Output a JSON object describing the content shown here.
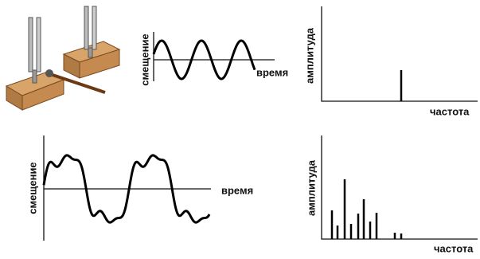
{
  "top_waveform": {
    "y_label": "смещение",
    "x_label": "время"
  },
  "top_spectrum": {
    "y_label": "амплитуда",
    "x_label": "частота"
  },
  "bottom_waveform": {
    "y_label": "смещение",
    "x_label": "время"
  },
  "bottom_spectrum": {
    "y_label": "амплитуда",
    "x_label": "частота"
  }
}
